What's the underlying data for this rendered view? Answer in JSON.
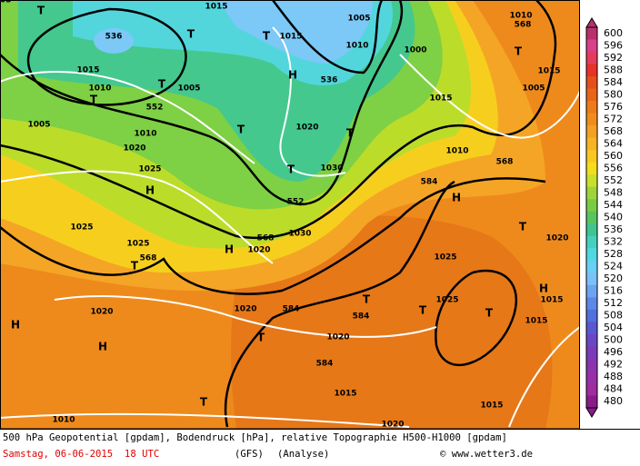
{
  "map": {
    "labels": [
      "536",
      "552",
      "536",
      "552",
      "568",
      "568",
      "568",
      "568",
      "584",
      "584",
      "584",
      "584",
      "H",
      "H",
      "H",
      "H",
      "H",
      "H",
      "H",
      "T",
      "T",
      "T",
      "T",
      "T",
      "T",
      "T",
      "T",
      "T",
      "T",
      "T",
      "T",
      "T",
      "T",
      "T",
      "T",
      "1015",
      "1015",
      "1010",
      "1005",
      "1000",
      "1015",
      "1010",
      "1005",
      "1015",
      "1020",
      "1005",
      "1010",
      "1020",
      "1025",
      "1030",
      "1010",
      "1025",
      "1025",
      "1020",
      "1030",
      "1025",
      "1025",
      "1020",
      "1020",
      "1020",
      "1020",
      "1015",
      "1015",
      "1015",
      "1015",
      "1010",
      "1020",
      "1015",
      "1005",
      "1010",
      "1005"
    ]
  },
  "legend": {
    "values": [
      600,
      596,
      592,
      588,
      584,
      580,
      576,
      572,
      568,
      564,
      560,
      556,
      552,
      548,
      544,
      540,
      536,
      532,
      528,
      524,
      520,
      516,
      512,
      508,
      504,
      500,
      496,
      492,
      488,
      484,
      480
    ],
    "colors": [
      "#b8306e",
      "#d8408a",
      "#e43c5c",
      "#e83228",
      "#e4501c",
      "#e86418",
      "#ec7c1a",
      "#f08c1c",
      "#f4a024",
      "#f6b424",
      "#f8c820",
      "#f4dc1e",
      "#c8e02a",
      "#9ed43a",
      "#78cc44",
      "#58c460",
      "#40c490",
      "#44d0c0",
      "#50d8e0",
      "#68d0f4",
      "#7cc0f8",
      "#6ca4f0",
      "#5c88e8",
      "#5070dc",
      "#5a58d0",
      "#6a48c4",
      "#7a3cb8",
      "#8a34b0",
      "#9830a8",
      "#a02ca0",
      "#8a1c88"
    ]
  },
  "footer": {
    "caption": "500 hPa Geopotential [gpdam], Bodendruck [hPa], relative Topographie H500-H1000 [gpdam]",
    "date": "Samstag, 06-06-2015  18 UTC",
    "model": "(GFS)",
    "run": "(Analyse)",
    "credit": "© www.wetter3.de"
  }
}
